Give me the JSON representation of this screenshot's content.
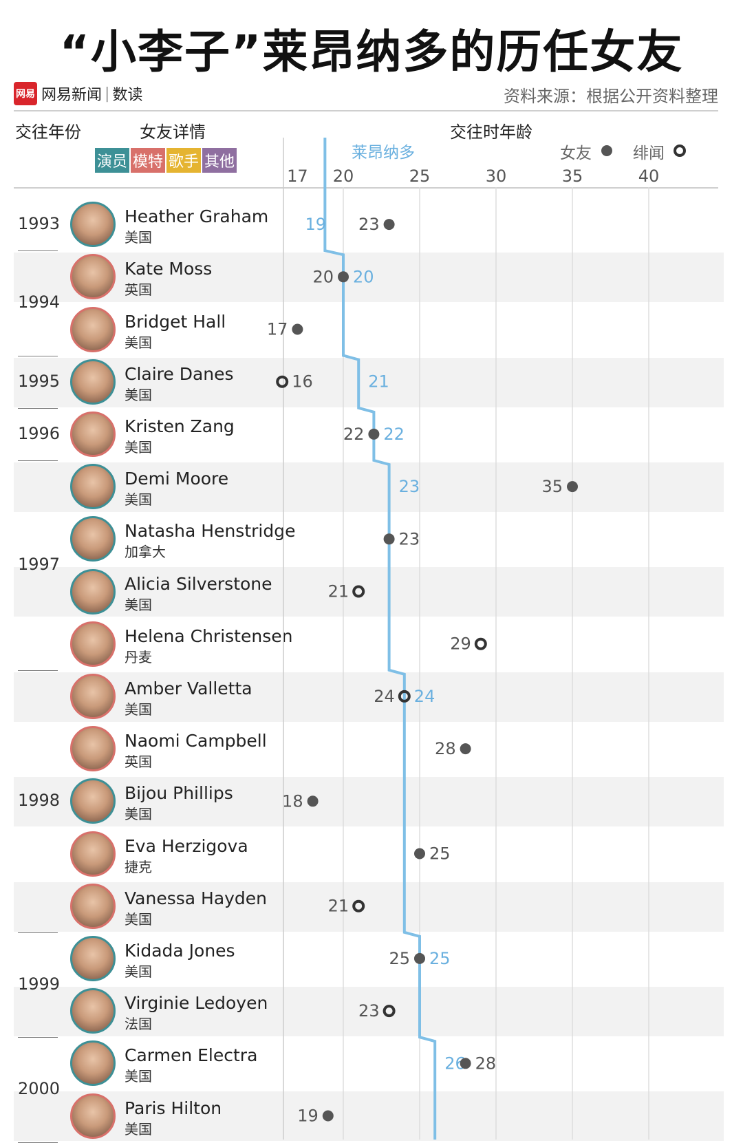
{
  "title": "“小李子”莱昂纳多的历任女友",
  "brand": {
    "logo_text": "网易",
    "name": "网易新闻",
    "sub": "数读"
  },
  "source": "资料来源：根据公开资料整理",
  "headers": {
    "year": "交往年份",
    "detail": "女友详情",
    "age": "交往时年龄"
  },
  "categories": [
    {
      "label": "演员",
      "color": "#3d9096"
    },
    {
      "label": "模特",
      "color": "#d8706a"
    },
    {
      "label": "歌手",
      "color": "#e5b431"
    },
    {
      "label": "其他",
      "color": "#8f6fa0"
    }
  ],
  "legend": {
    "leo": "莱昂纳多",
    "girlfriend": "女友",
    "rumor": "绯闻"
  },
  "colors": {
    "leo_line": "#7fbfe6",
    "dot": "#555555",
    "row_bg": "#f2f2f2"
  },
  "chart_data": {
    "type": "scatter",
    "xlim": [
      15,
      42
    ],
    "xticks": [
      17,
      20,
      25,
      30,
      35,
      40
    ],
    "year_groups": [
      {
        "year": "1993",
        "rows": [
          0,
          0
        ]
      },
      {
        "year": "1994",
        "rows": [
          1,
          2
        ]
      },
      {
        "year": "1995",
        "rows": [
          3,
          3
        ]
      },
      {
        "year": "1996",
        "rows": [
          4,
          4
        ]
      },
      {
        "year": "1997",
        "rows": [
          5,
          8
        ]
      },
      {
        "year": "1998",
        "rows": [
          9,
          13
        ]
      },
      {
        "year": "1999",
        "rows": [
          14,
          15
        ]
      },
      {
        "year": "2000",
        "rows": [
          16,
          17
        ]
      }
    ],
    "rows": [
      {
        "name": "Heather Graham",
        "country": "美国",
        "category": "演员",
        "age": 23,
        "type": "女友",
        "label_side": "left",
        "leo_age": 19
      },
      {
        "name": "Kate Moss",
        "country": "英国",
        "category": "模特",
        "age": 20,
        "type": "女友",
        "label_side": "left",
        "leo_age": 20
      },
      {
        "name": "Bridget Hall",
        "country": "美国",
        "category": "模特",
        "age": 17,
        "type": "女友",
        "label_side": "left",
        "leo_age": null
      },
      {
        "name": "Claire Danes",
        "country": "美国",
        "category": "演员",
        "age": 16,
        "type": "绯闻",
        "label_side": "right",
        "leo_age": 21
      },
      {
        "name": "Kristen Zang",
        "country": "美国",
        "category": "模特",
        "age": 22,
        "type": "女友",
        "label_side": "left",
        "leo_age": 22
      },
      {
        "name": "Demi Moore",
        "country": "美国",
        "category": "演员",
        "age": 35,
        "type": "女友",
        "label_side": "left",
        "leo_age": 23
      },
      {
        "name": "Natasha Henstridge",
        "country": "加拿大",
        "category": "演员",
        "age": 23,
        "type": "女友",
        "label_side": "right",
        "leo_age": null
      },
      {
        "name": "Alicia Silverstone",
        "country": "美国",
        "category": "演员",
        "age": 21,
        "type": "绯闻",
        "label_side": "left",
        "leo_age": null
      },
      {
        "name": "Helena Christensen",
        "country": "丹麦",
        "category": "模特",
        "age": 29,
        "type": "绯闻",
        "label_side": "left",
        "leo_age": null
      },
      {
        "name": "Amber Valletta",
        "country": "美国",
        "category": "模特",
        "age": 24,
        "type": "绯闻",
        "label_side": "left",
        "leo_age": 24
      },
      {
        "name": "Naomi Campbell",
        "country": "英国",
        "category": "模特",
        "age": 28,
        "type": "女友",
        "label_side": "left",
        "leo_age": null
      },
      {
        "name": "Bijou Phillips",
        "country": "美国",
        "category": "演员",
        "age": 18,
        "type": "女友",
        "label_side": "left",
        "leo_age": null
      },
      {
        "name": "Eva Herzigova",
        "country": "捷克",
        "category": "模特",
        "age": 25,
        "type": "女友",
        "label_side": "right",
        "leo_age": null
      },
      {
        "name": "Vanessa Hayden",
        "country": "美国",
        "category": "模特",
        "age": 21,
        "type": "绯闻",
        "label_side": "left",
        "leo_age": null
      },
      {
        "name": "Kidada Jones",
        "country": "美国",
        "category": "演员",
        "age": 25,
        "type": "女友",
        "label_side": "left",
        "leo_age": 25
      },
      {
        "name": "Virginie Ledoyen",
        "country": "法国",
        "category": "演员",
        "age": 23,
        "type": "绯闻",
        "label_side": "left",
        "leo_age": null
      },
      {
        "name": "Carmen Electra",
        "country": "美国",
        "category": "演员",
        "age": 28,
        "type": "女友",
        "label_side": "right",
        "leo_age": 26
      },
      {
        "name": "Paris Hilton",
        "country": "美国",
        "category": "模特",
        "age": 19,
        "type": "女友",
        "label_side": "left",
        "leo_age": null
      }
    ]
  }
}
